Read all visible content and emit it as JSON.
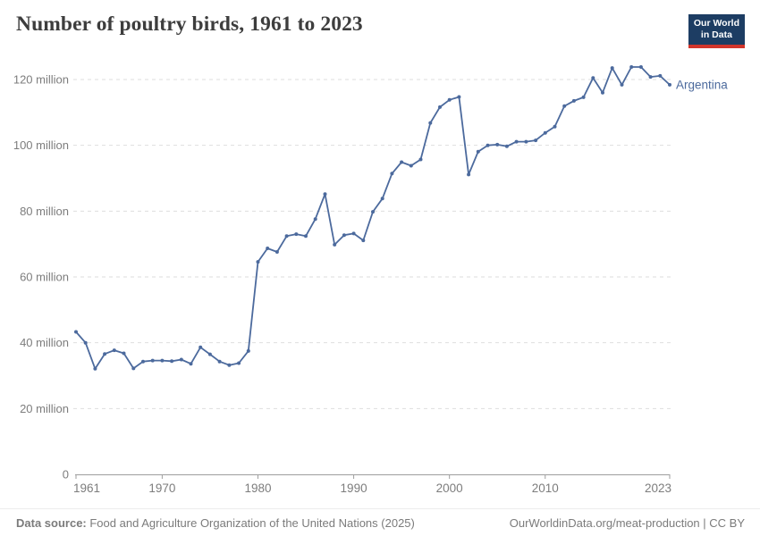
{
  "header": {
    "title": "Number of poultry birds, 1961 to 2023"
  },
  "logo": {
    "line1": "Our World",
    "line2": "in Data",
    "bg_color": "#1d3d63",
    "accent_color": "#d2352b"
  },
  "chart_data": {
    "type": "line",
    "title": "Number of poultry birds, 1961 to 2023",
    "unit": "birds",
    "value_scale": "millions",
    "grid": "horizontal dashed",
    "legend_position": "end-of-line label",
    "xlim": [
      1961,
      2023
    ],
    "ylim": [
      0,
      125
    ],
    "x": [
      1961,
      1962,
      1963,
      1964,
      1965,
      1966,
      1967,
      1968,
      1969,
      1970,
      1971,
      1972,
      1973,
      1974,
      1975,
      1976,
      1977,
      1978,
      1979,
      1980,
      1981,
      1982,
      1983,
      1984,
      1985,
      1986,
      1987,
      1988,
      1989,
      1990,
      1991,
      1992,
      1993,
      1994,
      1995,
      1996,
      1997,
      1998,
      1999,
      2000,
      2001,
      2002,
      2003,
      2004,
      2005,
      2006,
      2007,
      2008,
      2009,
      2010,
      2011,
      2012,
      2013,
      2014,
      2015,
      2016,
      2017,
      2018,
      2019,
      2020,
      2021,
      2022,
      2023
    ],
    "series": [
      {
        "name": "Argentina",
        "color": "#4c6a9d",
        "values": [
          43.3,
          40.0,
          32.1,
          36.6,
          37.7,
          36.8,
          32.2,
          34.3,
          34.6,
          34.6,
          34.4,
          34.9,
          33.6,
          38.6,
          36.5,
          34.3,
          33.2,
          33.8,
          37.5,
          64.6,
          68.7,
          67.6,
          72.4,
          73.0,
          72.4,
          77.6,
          85.2,
          69.8,
          72.7,
          73.2,
          71.1,
          79.8,
          83.8,
          91.4,
          94.9,
          93.8,
          95.7,
          106.8,
          111.6,
          113.8,
          114.7,
          91.1,
          98.1,
          100.0,
          100.2,
          99.7,
          101.1,
          101.1,
          101.5,
          103.8,
          105.7,
          111.9,
          113.5,
          114.6,
          120.5,
          116.0,
          123.5,
          118.4,
          123.8,
          123.8,
          120.8,
          121.1,
          118.4
        ]
      }
    ],
    "yticks": [
      {
        "value": 0,
        "label": "0"
      },
      {
        "value": 20,
        "label": "20 million"
      },
      {
        "value": 40,
        "label": "40 million"
      },
      {
        "value": 60,
        "label": "60 million"
      },
      {
        "value": 80,
        "label": "80 million"
      },
      {
        "value": 100,
        "label": "100 million"
      },
      {
        "value": 120,
        "label": "120 million"
      }
    ],
    "xticks": [
      1961,
      1970,
      1980,
      1990,
      2000,
      2010,
      2023
    ]
  },
  "footer": {
    "source_label": "Data source:",
    "source_text": " Food and Agriculture Organization of the United Nations (2025)",
    "link_text": "OurWorldinData.org/meat-production | CC BY"
  }
}
